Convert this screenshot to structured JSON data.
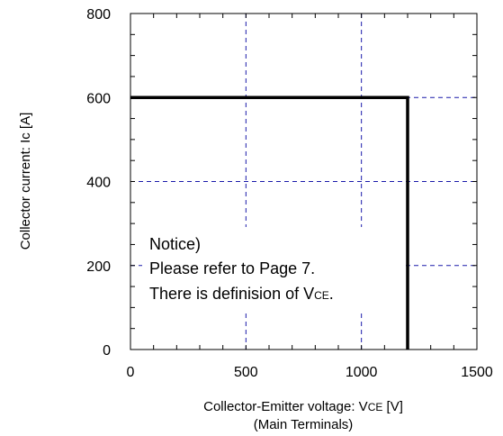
{
  "chart_data": {
    "type": "line",
    "title": "",
    "xlabel": "Collector-Emitter voltage: V",
    "xlabel_sub": "CE",
    "xlabel_suffix": " [V]",
    "xlabel_line2": "(Main Terminals)",
    "ylabel": "Collector current: Ic [A]",
    "xlim": [
      0,
      1500
    ],
    "ylim": [
      0,
      800
    ],
    "xticks": [
      0,
      500,
      1000,
      1500
    ],
    "yticks": [
      0,
      200,
      400,
      600,
      800
    ],
    "grid": true,
    "series": [
      {
        "x": [
          0,
          1200,
          1200
        ],
        "y": [
          600,
          600,
          0
        ],
        "color": "#000000"
      }
    ],
    "annotation": {
      "line1": "Notice)",
      "line2": "Please refer to Page 7.",
      "line3_prefix": "There is definision of V",
      "line3_sub": "CE",
      "line3_suffix": "."
    },
    "colors": {
      "grid": "#1a1aaa",
      "frame": "#000000",
      "series": "#000000"
    }
  }
}
